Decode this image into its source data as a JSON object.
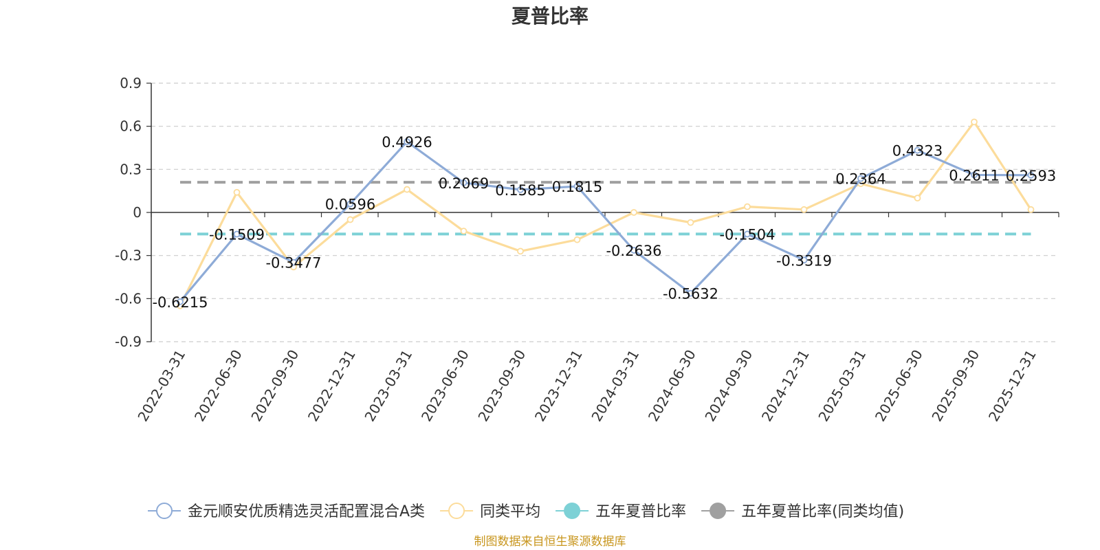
{
  "chart_data": {
    "type": "line",
    "title": "夏普比率",
    "categories": [
      "2022-03-31",
      "2022-06-30",
      "2022-09-30",
      "2022-12-31",
      "2023-03-31",
      "2023-06-30",
      "2023-09-30",
      "2023-12-31",
      "2024-03-31",
      "2024-06-30",
      "2024-09-30",
      "2024-12-31",
      "2025-03-31",
      "2025-06-30",
      "2025-09-30",
      "2025-12-31"
    ],
    "ylim": [
      -0.9,
      0.9
    ],
    "yticks": [
      0.9,
      0.6,
      0.3,
      0,
      -0.3,
      -0.6,
      -0.9
    ],
    "ytick_labels": [
      "0.9",
      "0.6",
      "0.3",
      "0",
      "-0.3",
      "-0.6",
      "-0.9"
    ],
    "grid": true,
    "legend_position": "bottom",
    "series": [
      {
        "name": "金元顺安优质精选灵活配置混合A类",
        "color": "#8eabd7",
        "values": [
          -0.6215,
          -0.1509,
          -0.3477,
          0.0596,
          0.4926,
          0.2069,
          0.1585,
          0.1815,
          -0.2636,
          -0.5632,
          -0.1504,
          -0.3319,
          0.2364,
          0.4323,
          0.2611,
          0.2593
        ],
        "data_labels": [
          "-0.6215",
          "-0.1509",
          "-0.3477",
          "0.0596",
          "0.4926",
          "0.2069",
          "0.1585",
          "0.1815",
          "-0.2636",
          "-0.5632",
          "-0.1504",
          "-0.3319",
          "0.2364",
          "0.4323",
          "0.2611",
          "0.2593"
        ]
      },
      {
        "name": "同类平均",
        "color": "#fcdc9b",
        "values": [
          -0.65,
          0.14,
          -0.38,
          -0.05,
          0.16,
          -0.13,
          -0.27,
          -0.19,
          0.0,
          -0.07,
          0.04,
          0.02,
          0.2,
          0.1,
          0.63,
          0.02
        ]
      }
    ],
    "reference_lines": [
      {
        "name": "五年夏普比率",
        "color": "#7dd1d6",
        "value": -0.15
      },
      {
        "name": "五年夏普比率(同类均值)",
        "color": "#a0a0a0",
        "value": 0.21
      }
    ],
    "source": "制图数据来自恒生聚源数据库"
  }
}
